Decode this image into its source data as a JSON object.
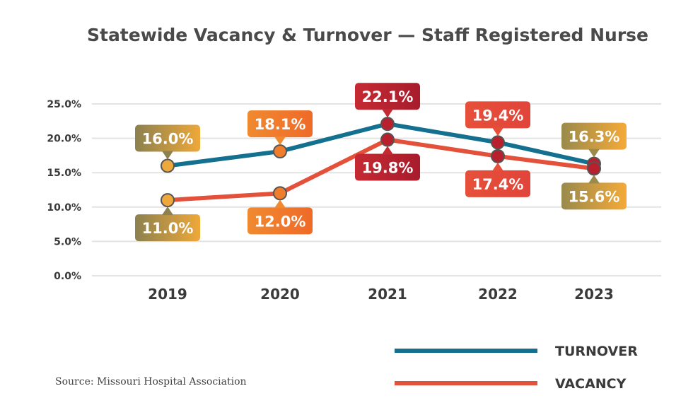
{
  "chart_data": {
    "type": "line",
    "title": "Statewide Vacancy & Turnover — Staff Registered Nurse",
    "categories": [
      "2019",
      "2020",
      "2021",
      "2022",
      "2023"
    ],
    "yticks": [
      "0.0%",
      "5.0%",
      "10.0%",
      "15.0%",
      "20.0%",
      "25.0%"
    ],
    "ylim": [
      0,
      25
    ],
    "grid": true,
    "legend_placement": "bottom-right",
    "series": [
      {
        "name": "TURNOVER",
        "color": "#13708f",
        "values": [
          16.0,
          18.1,
          22.1,
          19.4,
          16.3
        ],
        "labels": [
          "16.0%",
          "18.1%",
          "22.1%",
          "19.4%",
          "16.3%"
        ],
        "label_position": "above"
      },
      {
        "name": "VACANCY",
        "color": "#e4513a",
        "values": [
          11.0,
          12.0,
          19.8,
          17.4,
          15.6
        ],
        "labels": [
          "11.0%",
          "12.0%",
          "19.8%",
          "17.4%",
          "15.6%"
        ],
        "label_position": "below"
      }
    ],
    "year_colors": [
      {
        "box_from": "#8c814f",
        "box_to": "#eea83a",
        "marker": "#efa83b"
      },
      {
        "box_from": "#f08a30",
        "box_to": "#ef6a28",
        "marker": "#ef7d2b"
      },
      {
        "box_from": "#c52a33",
        "box_to": "#a81c2c",
        "marker": "#b8202e"
      },
      {
        "box_from": "#e6503a",
        "box_to": "#e1443a",
        "marker": "#b8202e"
      },
      {
        "box_from": "#9a8a4c",
        "box_to": "#f4aa38",
        "marker": "#b8202e"
      }
    ]
  },
  "source": "Source: Missouri Hospital Association"
}
